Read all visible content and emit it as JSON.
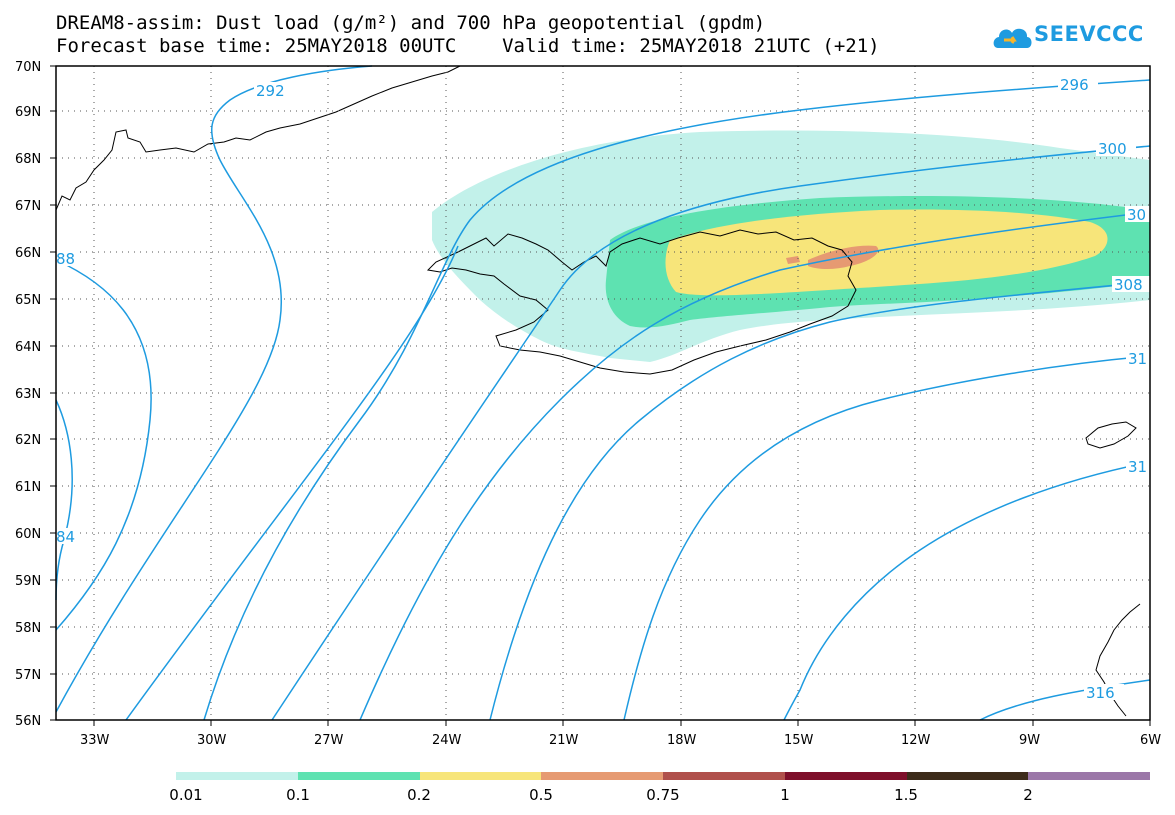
{
  "header": {
    "line1": "DREAM8-assim: Dust load (g/m²) and 700 hPa geopotential (gpdm)",
    "line2": "Forecast base time: 25MAY2018 00UTC    Valid time: 25MAY2018 21UTC (+21)"
  },
  "logo": {
    "text": "SEEVCCC",
    "icon": "cloud-logo-icon",
    "color": "#1e9be0"
  },
  "axes": {
    "lat_labels": [
      "70N",
      "69N",
      "68N",
      "67N",
      "66N",
      "65N",
      "64N",
      "63N",
      "62N",
      "61N",
      "60N",
      "59N",
      "58N",
      "57N",
      "56N"
    ],
    "lon_labels": [
      "33W",
      "30W",
      "27W",
      "24W",
      "21W",
      "18W",
      "15W",
      "12W",
      "9W",
      "6W"
    ]
  },
  "contours": {
    "color": "#1e9be0",
    "labels": [
      "292",
      "296",
      "300",
      "30",
      "308",
      "31",
      "31",
      "316",
      "88",
      "84"
    ]
  },
  "colorbar": {
    "colors": [
      "#c2f1ea",
      "#5ee2b1",
      "#f7e57a",
      "#e69a72",
      "#b0504b",
      "#7e0f2a",
      "#3d2b1a",
      "#9b77a8"
    ],
    "labels": [
      "0.01",
      "0.1",
      "0.2",
      "0.5",
      "0.75",
      "1",
      "1.5",
      "2"
    ]
  }
}
